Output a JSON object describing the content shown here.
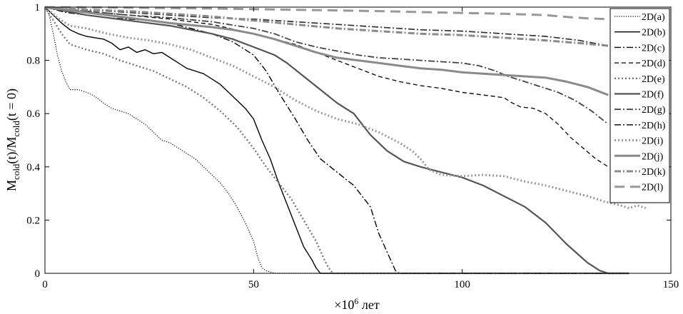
{
  "chart_data": {
    "type": "line",
    "title": "",
    "xlabel": {
      "prefix": "×10",
      "exponent": "6",
      "suffix": " лет"
    },
    "ylabel": {
      "base1": "M",
      "sub1": "cold",
      "mid": "(t)/M",
      "sub2": "cold",
      "end": "(t = 0)"
    },
    "xlim": [
      0,
      150
    ],
    "ylim": [
      0,
      1
    ],
    "xticks": [
      "0",
      "50",
      "100",
      "150"
    ],
    "yticks": [
      "0",
      "0.2",
      "0.4",
      "0.6",
      "0.8",
      "1"
    ],
    "grid": false,
    "legend_position": "top-right",
    "series": [
      {
        "name": "2D(a)",
        "color": "#000000",
        "dash": "dotted-fine",
        "width": 1.2,
        "points": [
          [
            0,
            1
          ],
          [
            1,
            0.97
          ],
          [
            2,
            0.9
          ],
          [
            3,
            0.82
          ],
          [
            4,
            0.76
          ],
          [
            5,
            0.72
          ],
          [
            6,
            0.69
          ],
          [
            8,
            0.69
          ],
          [
            10,
            0.68
          ],
          [
            12,
            0.665
          ],
          [
            14,
            0.64
          ],
          [
            16,
            0.62
          ],
          [
            18,
            0.61
          ],
          [
            20,
            0.6
          ],
          [
            22,
            0.58
          ],
          [
            24,
            0.56
          ],
          [
            26,
            0.53
          ],
          [
            28,
            0.5
          ],
          [
            30,
            0.49
          ],
          [
            32,
            0.47
          ],
          [
            34,
            0.45
          ],
          [
            36,
            0.43
          ],
          [
            38,
            0.4
          ],
          [
            40,
            0.37
          ],
          [
            42,
            0.34
          ],
          [
            44,
            0.3
          ],
          [
            46,
            0.25
          ],
          [
            48,
            0.19
          ],
          [
            50,
            0.12
          ],
          [
            51,
            0.06
          ],
          [
            52,
            0.02
          ],
          [
            53,
            0.01
          ],
          [
            54,
            0.005
          ],
          [
            55,
            0
          ],
          [
            140,
            0
          ]
        ]
      },
      {
        "name": "2D(b)",
        "color": "#000000",
        "dash": "solid",
        "width": 1.4,
        "points": [
          [
            0,
            1
          ],
          [
            2,
            0.97
          ],
          [
            4,
            0.94
          ],
          [
            6,
            0.915
          ],
          [
            8,
            0.9
          ],
          [
            10,
            0.89
          ],
          [
            12,
            0.885
          ],
          [
            14,
            0.88
          ],
          [
            16,
            0.865
          ],
          [
            18,
            0.84
          ],
          [
            20,
            0.85
          ],
          [
            22,
            0.83
          ],
          [
            24,
            0.84
          ],
          [
            26,
            0.825
          ],
          [
            28,
            0.83
          ],
          [
            30,
            0.81
          ],
          [
            32,
            0.79
          ],
          [
            34,
            0.77
          ],
          [
            36,
            0.76
          ],
          [
            38,
            0.75
          ],
          [
            40,
            0.73
          ],
          [
            42,
            0.71
          ],
          [
            44,
            0.68
          ],
          [
            46,
            0.65
          ],
          [
            48,
            0.62
          ],
          [
            50,
            0.58
          ],
          [
            52,
            0.5
          ],
          [
            54,
            0.43
          ],
          [
            56,
            0.34
          ],
          [
            58,
            0.26
          ],
          [
            60,
            0.18
          ],
          [
            62,
            0.1
          ],
          [
            64,
            0.05
          ],
          [
            65,
            0.02
          ],
          [
            66,
            0
          ],
          [
            140,
            0
          ]
        ]
      },
      {
        "name": "2D(c)",
        "color": "#000000",
        "dash": "dashdot",
        "width": 1.4,
        "points": [
          [
            0,
            1
          ],
          [
            5,
            0.98
          ],
          [
            10,
            0.97
          ],
          [
            15,
            0.96
          ],
          [
            20,
            0.955
          ],
          [
            25,
            0.95
          ],
          [
            30,
            0.94
          ],
          [
            35,
            0.92
          ],
          [
            40,
            0.9
          ],
          [
            45,
            0.87
          ],
          [
            50,
            0.82
          ],
          [
            53,
            0.76
          ],
          [
            56,
            0.68
          ],
          [
            60,
            0.58
          ],
          [
            63,
            0.5
          ],
          [
            66,
            0.43
          ],
          [
            70,
            0.38
          ],
          [
            74,
            0.33
          ],
          [
            78,
            0.25
          ],
          [
            80,
            0.15
          ],
          [
            82,
            0.08
          ],
          [
            84,
            0.01
          ],
          [
            85,
            0
          ],
          [
            140,
            0
          ]
        ]
      },
      {
        "name": "2D(d)",
        "color": "#000000",
        "dash": "dashed",
        "width": 1.3,
        "points": [
          [
            0,
            1
          ],
          [
            10,
            0.985
          ],
          [
            20,
            0.97
          ],
          [
            30,
            0.955
          ],
          [
            40,
            0.935
          ],
          [
            50,
            0.9
          ],
          [
            60,
            0.86
          ],
          [
            65,
            0.83
          ],
          [
            70,
            0.8
          ],
          [
            75,
            0.77
          ],
          [
            80,
            0.74
          ],
          [
            85,
            0.72
          ],
          [
            90,
            0.705
          ],
          [
            95,
            0.695
          ],
          [
            100,
            0.68
          ],
          [
            105,
            0.67
          ],
          [
            110,
            0.66
          ],
          [
            112,
            0.64
          ],
          [
            114,
            0.625
          ],
          [
            117,
            0.62
          ],
          [
            120,
            0.6
          ],
          [
            123,
            0.56
          ],
          [
            126,
            0.51
          ],
          [
            129,
            0.47
          ],
          [
            132,
            0.43
          ],
          [
            135,
            0.4
          ]
        ]
      },
      {
        "name": "2D(e)",
        "color": "#777777",
        "dash": "dotted-bold",
        "width": 2.4,
        "points": [
          [
            0,
            1
          ],
          [
            2,
            0.95
          ],
          [
            4,
            0.9
          ],
          [
            6,
            0.86
          ],
          [
            10,
            0.84
          ],
          [
            14,
            0.825
          ],
          [
            18,
            0.8
          ],
          [
            22,
            0.78
          ],
          [
            26,
            0.76
          ],
          [
            30,
            0.73
          ],
          [
            34,
            0.7
          ],
          [
            38,
            0.66
          ],
          [
            42,
            0.61
          ],
          [
            46,
            0.55
          ],
          [
            50,
            0.47
          ],
          [
            53,
            0.4
          ],
          [
            56,
            0.34
          ],
          [
            59,
            0.28
          ],
          [
            62,
            0.2
          ],
          [
            65,
            0.12
          ],
          [
            67,
            0.05
          ],
          [
            68,
            0.02
          ],
          [
            69,
            0
          ],
          [
            140,
            0
          ]
        ]
      },
      {
        "name": "2D(f)",
        "color": "#555555",
        "dash": "solid",
        "width": 2.2,
        "points": [
          [
            0,
            1
          ],
          [
            10,
            0.97
          ],
          [
            20,
            0.95
          ],
          [
            30,
            0.93
          ],
          [
            40,
            0.9
          ],
          [
            45,
            0.88
          ],
          [
            50,
            0.85
          ],
          [
            55,
            0.82
          ],
          [
            58,
            0.79
          ],
          [
            62,
            0.74
          ],
          [
            66,
            0.69
          ],
          [
            70,
            0.64
          ],
          [
            74,
            0.6
          ],
          [
            78,
            0.52
          ],
          [
            82,
            0.46
          ],
          [
            86,
            0.42
          ],
          [
            90,
            0.4
          ],
          [
            95,
            0.38
          ],
          [
            100,
            0.36
          ],
          [
            105,
            0.33
          ],
          [
            110,
            0.29
          ],
          [
            115,
            0.25
          ],
          [
            120,
            0.19
          ],
          [
            125,
            0.11
          ],
          [
            130,
            0.04
          ],
          [
            133,
            0.01
          ],
          [
            135,
            0
          ],
          [
            140,
            0
          ]
        ]
      },
      {
        "name": "2D(g)",
        "color": "#444444",
        "dash": "dashdot",
        "width": 1.8,
        "points": [
          [
            0,
            1
          ],
          [
            10,
            0.985
          ],
          [
            20,
            0.97
          ],
          [
            30,
            0.96
          ],
          [
            40,
            0.945
          ],
          [
            50,
            0.92
          ],
          [
            55,
            0.9
          ],
          [
            60,
            0.87
          ],
          [
            65,
            0.85
          ],
          [
            70,
            0.835
          ],
          [
            75,
            0.82
          ],
          [
            80,
            0.81
          ],
          [
            85,
            0.805
          ],
          [
            90,
            0.8
          ],
          [
            95,
            0.795
          ],
          [
            100,
            0.79
          ],
          [
            104,
            0.78
          ],
          [
            108,
            0.76
          ],
          [
            111,
            0.74
          ],
          [
            115,
            0.72
          ],
          [
            119,
            0.7
          ],
          [
            123,
            0.68
          ],
          [
            127,
            0.65
          ],
          [
            131,
            0.61
          ],
          [
            135,
            0.56
          ]
        ]
      },
      {
        "name": "2D(h)",
        "color": "#333333",
        "dash": "dashdot",
        "width": 1.7,
        "points": [
          [
            0,
            1
          ],
          [
            10,
            0.99
          ],
          [
            20,
            0.98
          ],
          [
            30,
            0.97
          ],
          [
            40,
            0.96
          ],
          [
            50,
            0.955
          ],
          [
            60,
            0.945
          ],
          [
            70,
            0.935
          ],
          [
            80,
            0.925
          ],
          [
            90,
            0.915
          ],
          [
            100,
            0.91
          ],
          [
            110,
            0.9
          ],
          [
            120,
            0.89
          ],
          [
            128,
            0.875
          ],
          [
            135,
            0.855
          ]
        ]
      },
      {
        "name": "2D(i)",
        "color": "#999999",
        "dash": "dotted-bold",
        "width": 3,
        "points": [
          [
            0,
            1
          ],
          [
            3,
            0.96
          ],
          [
            6,
            0.93
          ],
          [
            10,
            0.92
          ],
          [
            15,
            0.9
          ],
          [
            20,
            0.885
          ],
          [
            25,
            0.875
          ],
          [
            30,
            0.86
          ],
          [
            35,
            0.84
          ],
          [
            40,
            0.81
          ],
          [
            45,
            0.78
          ],
          [
            50,
            0.74
          ],
          [
            55,
            0.7
          ],
          [
            60,
            0.65
          ],
          [
            65,
            0.61
          ],
          [
            70,
            0.58
          ],
          [
            75,
            0.56
          ],
          [
            80,
            0.53
          ],
          [
            85,
            0.49
          ],
          [
            88,
            0.46
          ],
          [
            90,
            0.43
          ],
          [
            92,
            0.39
          ],
          [
            95,
            0.37
          ],
          [
            100,
            0.365
          ],
          [
            105,
            0.37
          ],
          [
            110,
            0.365
          ],
          [
            115,
            0.345
          ],
          [
            120,
            0.33
          ],
          [
            125,
            0.31
          ],
          [
            130,
            0.29
          ],
          [
            134,
            0.27
          ],
          [
            138,
            0.255
          ],
          [
            140,
            0.245
          ],
          [
            142,
            0.255
          ],
          [
            144,
            0.245
          ]
        ]
      },
      {
        "name": "2D(j)",
        "color": "#8a8a8a",
        "dash": "solid",
        "width": 3,
        "points": [
          [
            0,
            1
          ],
          [
            10,
            0.98
          ],
          [
            20,
            0.96
          ],
          [
            30,
            0.94
          ],
          [
            40,
            0.925
          ],
          [
            45,
            0.915
          ],
          [
            50,
            0.9
          ],
          [
            55,
            0.88
          ],
          [
            60,
            0.855
          ],
          [
            65,
            0.83
          ],
          [
            70,
            0.81
          ],
          [
            75,
            0.8
          ],
          [
            80,
            0.79
          ],
          [
            85,
            0.78
          ],
          [
            90,
            0.77
          ],
          [
            95,
            0.765
          ],
          [
            100,
            0.755
          ],
          [
            105,
            0.75
          ],
          [
            110,
            0.745
          ],
          [
            115,
            0.74
          ],
          [
            120,
            0.735
          ],
          [
            125,
            0.72
          ],
          [
            130,
            0.7
          ],
          [
            135,
            0.67
          ]
        ]
      },
      {
        "name": "2D(k)",
        "color": "#8a8a8a",
        "dash": "dashdot",
        "width": 3,
        "points": [
          [
            0,
            1
          ],
          [
            10,
            0.99
          ],
          [
            20,
            0.985
          ],
          [
            30,
            0.975
          ],
          [
            40,
            0.965
          ],
          [
            50,
            0.95
          ],
          [
            60,
            0.935
          ],
          [
            70,
            0.92
          ],
          [
            80,
            0.91
          ],
          [
            90,
            0.9
          ],
          [
            100,
            0.895
          ],
          [
            110,
            0.885
          ],
          [
            120,
            0.875
          ],
          [
            128,
            0.865
          ],
          [
            135,
            0.855
          ]
        ]
      },
      {
        "name": "2D(l)",
        "color": "#999999",
        "dash": "dashed-long",
        "width": 3,
        "points": [
          [
            0,
            1
          ],
          [
            20,
            0.998
          ],
          [
            40,
            0.995
          ],
          [
            60,
            0.99
          ],
          [
            80,
            0.985
          ],
          [
            100,
            0.978
          ],
          [
            110,
            0.975
          ],
          [
            120,
            0.97
          ],
          [
            126,
            0.962
          ],
          [
            130,
            0.958
          ],
          [
            135,
            0.955
          ]
        ]
      }
    ]
  }
}
